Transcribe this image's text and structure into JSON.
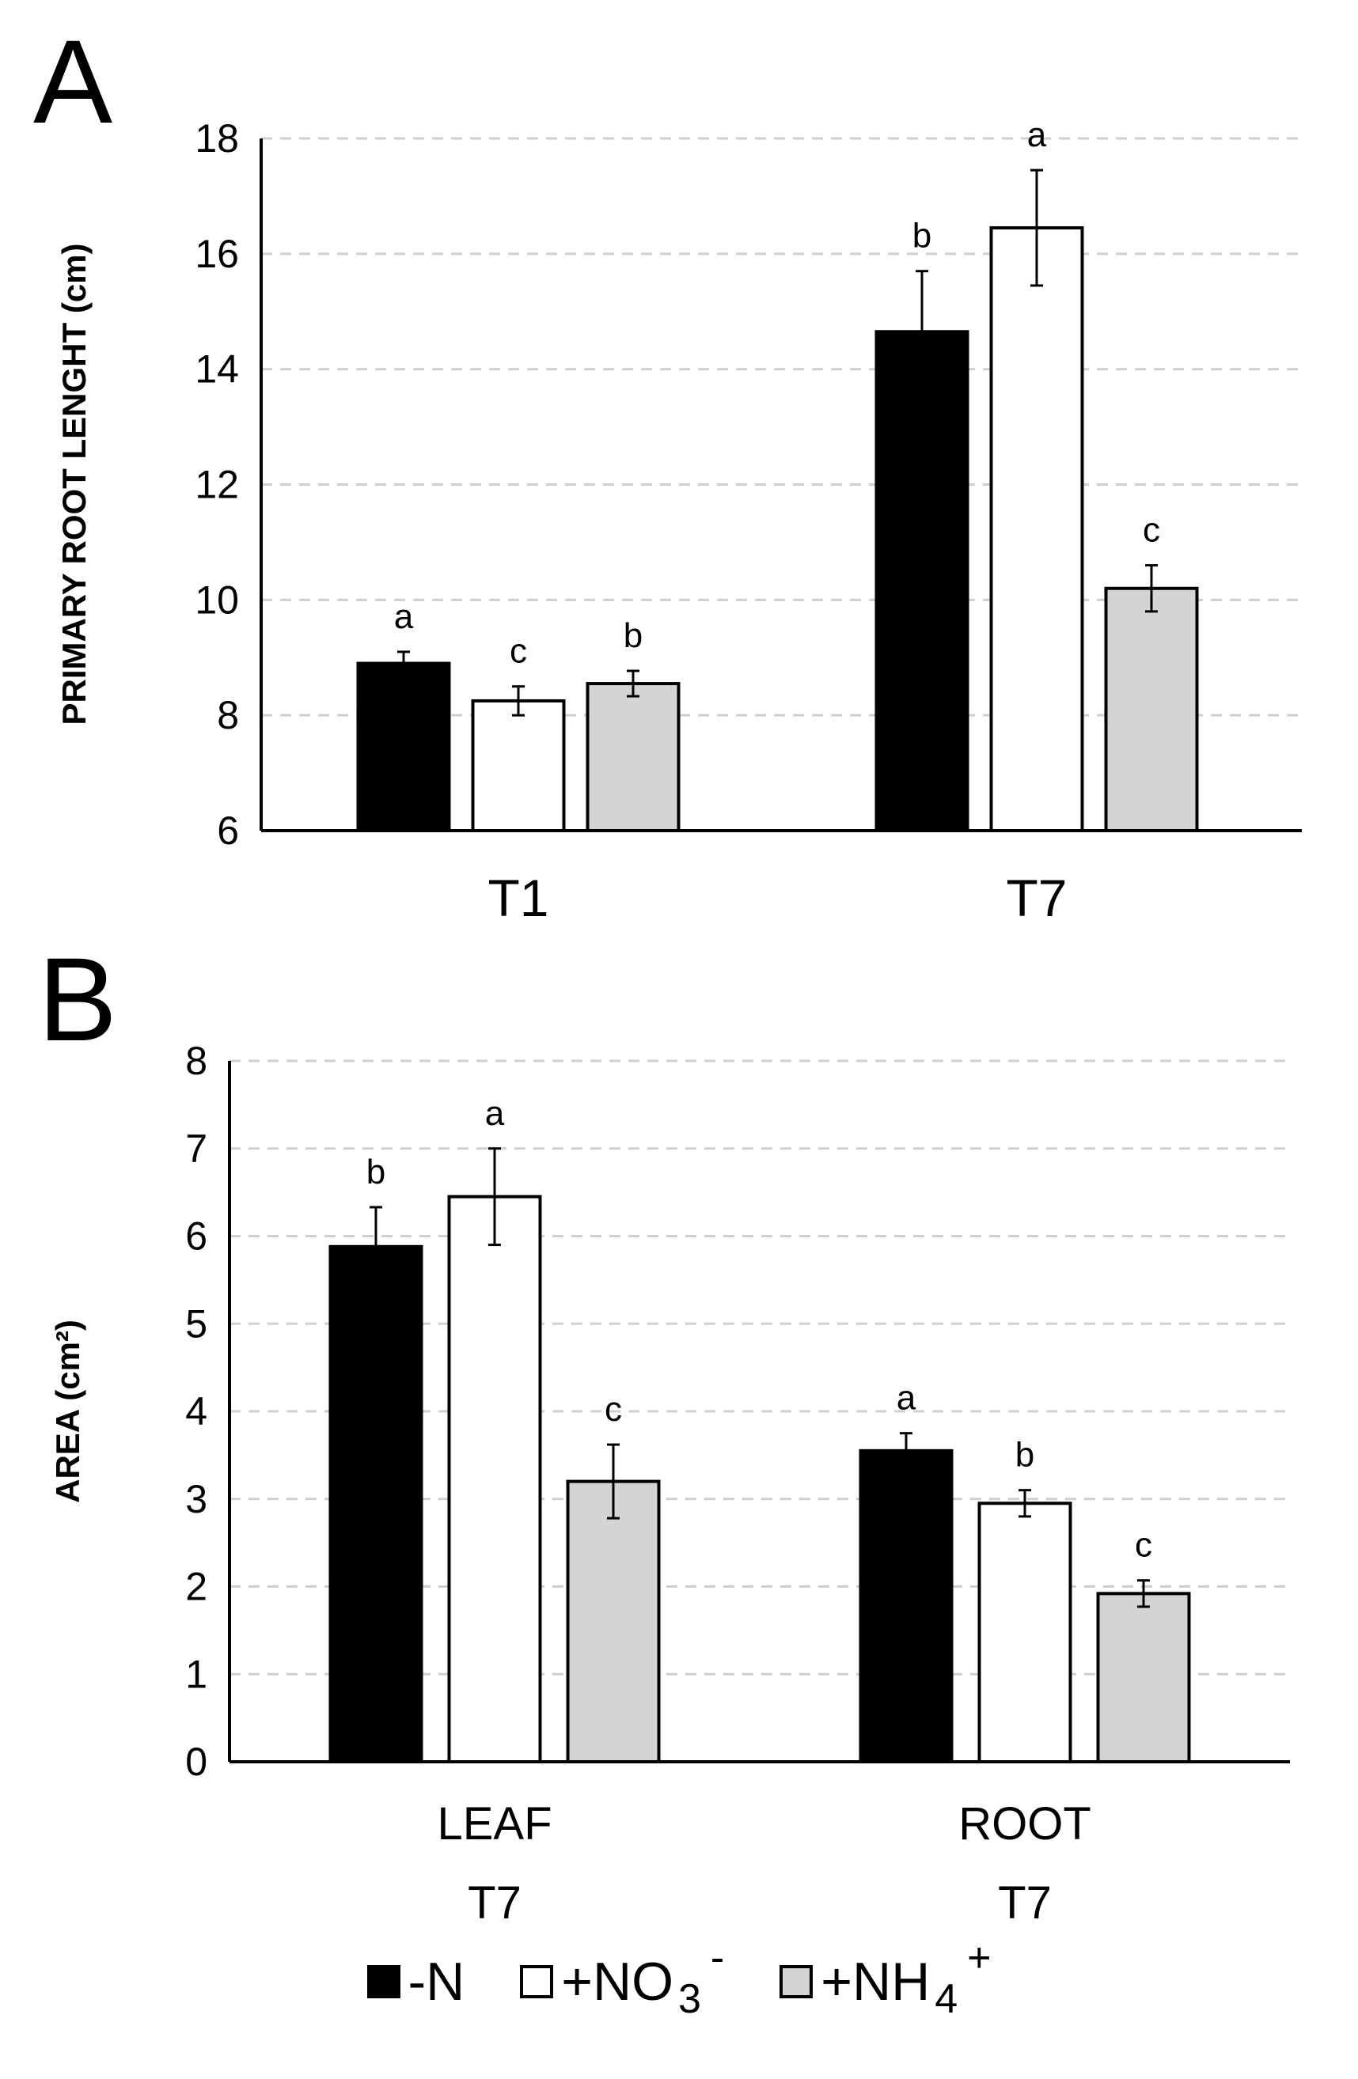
{
  "colors": {
    "neg_n": "#000000",
    "no3": "#ffffff",
    "nh4": "#d4d4d4",
    "grid": "#cfcfcf",
    "axis": "#000000"
  },
  "legend": {
    "items": [
      {
        "key": "neg_n",
        "label": "-N"
      },
      {
        "key": "no3",
        "label_prefix": "+NO",
        "sub": "3",
        "sup": "-"
      },
      {
        "key": "nh4",
        "label_prefix": "+NH",
        "sub": "4",
        "sup": "+"
      }
    ]
  },
  "chart_data": [
    {
      "panel": "A",
      "type": "bar",
      "ylabel": "PRIMARY ROOT LENGHT (cm)",
      "ylim": [
        6,
        18
      ],
      "yticks": [
        6,
        8,
        10,
        12,
        14,
        16,
        18
      ],
      "grid": true,
      "categories": [
        [
          "T1"
        ],
        [
          "T7"
        ]
      ],
      "series": [
        {
          "name": "-N",
          "color_key": "neg_n",
          "values": [
            8.9,
            14.65
          ],
          "errors": [
            0.2,
            1.05
          ],
          "letters": [
            "a",
            "b"
          ]
        },
        {
          "name": "+NO3-",
          "color_key": "no3",
          "values": [
            8.25,
            16.45
          ],
          "errors": [
            0.25,
            1.0
          ],
          "letters": [
            "c",
            "a"
          ]
        },
        {
          "name": "+NH4+",
          "color_key": "nh4",
          "values": [
            8.55,
            10.2
          ],
          "errors": [
            0.22,
            0.4
          ],
          "letters": [
            "b",
            "c"
          ]
        }
      ]
    },
    {
      "panel": "B",
      "type": "bar",
      "ylabel": "AREA (cm²)",
      "ylim": [
        0,
        8
      ],
      "yticks": [
        0,
        1,
        2,
        3,
        4,
        5,
        6,
        7,
        8
      ],
      "grid": true,
      "categories": [
        [
          "LEAF",
          "T7"
        ],
        [
          "ROOT",
          "T7"
        ]
      ],
      "series": [
        {
          "name": "-N",
          "color_key": "neg_n",
          "values": [
            5.88,
            3.55
          ],
          "errors": [
            0.45,
            0.2
          ],
          "letters": [
            "b",
            "a"
          ]
        },
        {
          "name": "+NO3-",
          "color_key": "no3",
          "values": [
            6.45,
            2.95
          ],
          "errors": [
            0.55,
            0.15
          ],
          "letters": [
            "a",
            "b"
          ]
        },
        {
          "name": "+NH4+",
          "color_key": "nh4",
          "values": [
            3.2,
            1.92
          ],
          "errors": [
            0.42,
            0.15
          ],
          "letters": [
            "c",
            "c"
          ]
        }
      ]
    }
  ]
}
